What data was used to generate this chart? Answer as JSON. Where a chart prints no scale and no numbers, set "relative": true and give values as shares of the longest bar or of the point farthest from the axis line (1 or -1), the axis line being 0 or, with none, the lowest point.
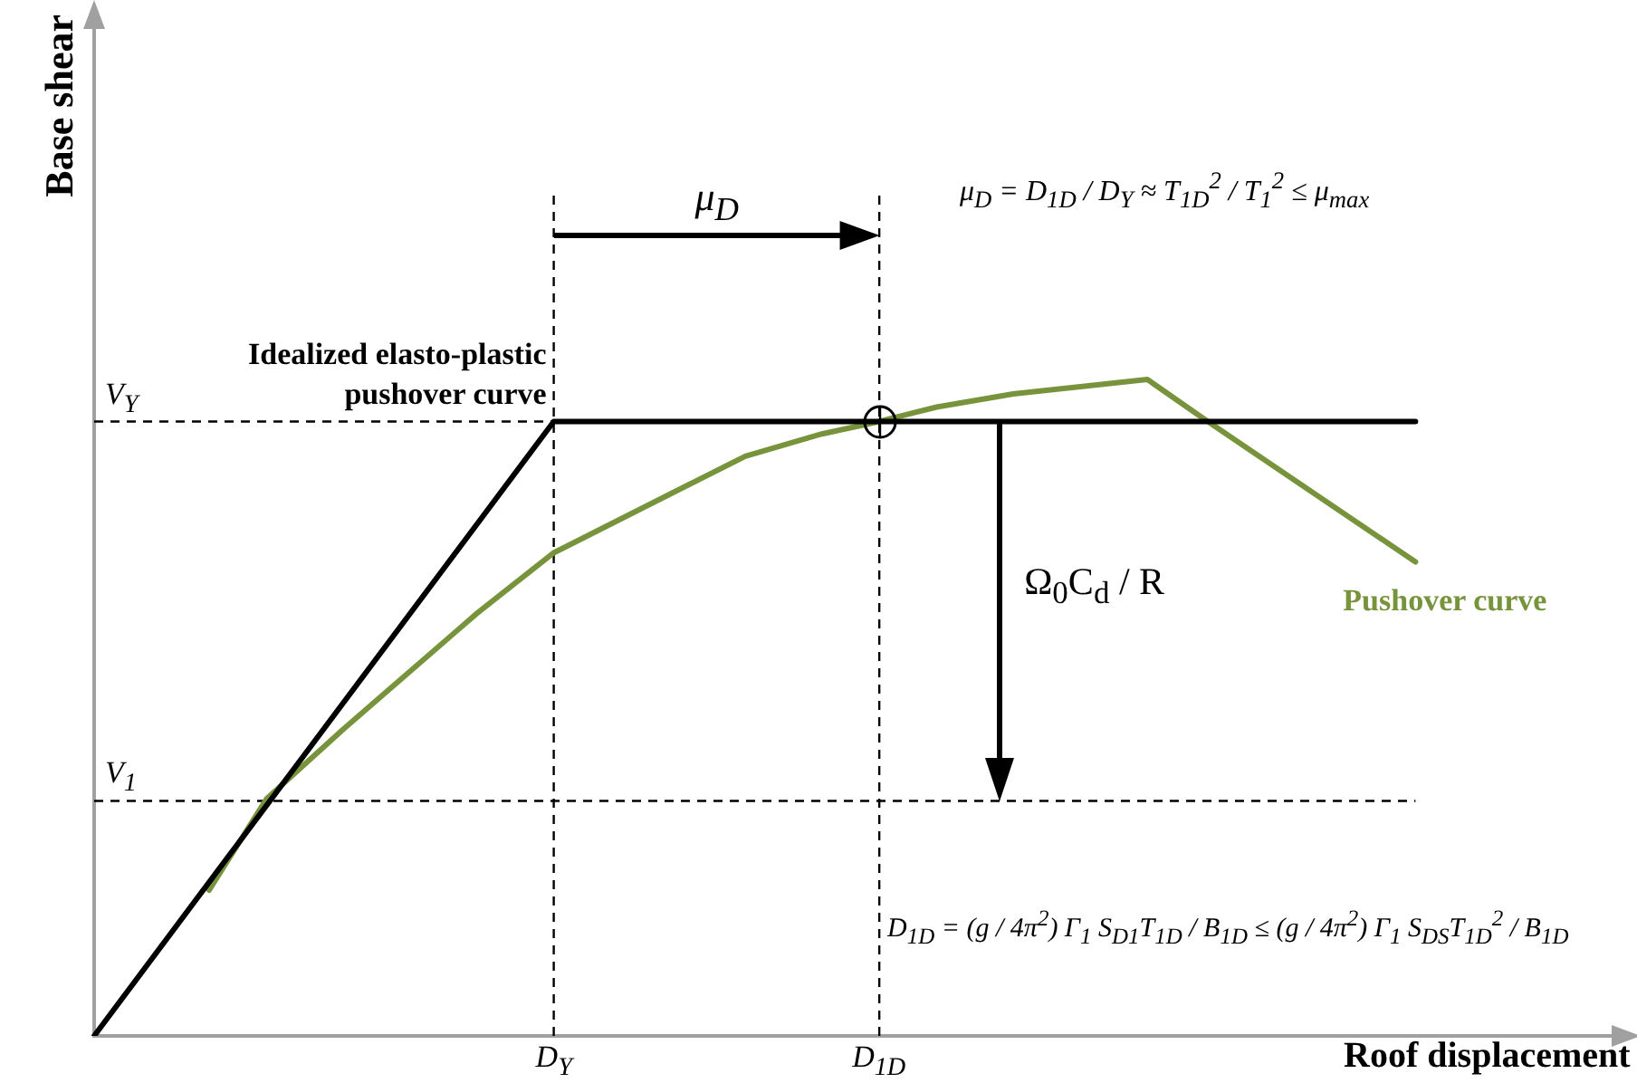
{
  "chart_data": {
    "type": "line",
    "relative": true,
    "xlabel": "Roof displacement",
    "ylabel": "Base shear",
    "legend": false,
    "grid": false,
    "marker": "none",
    "categories": [
      null,
      null,
      null,
      null,
      null,
      null,
      null,
      null,
      null,
      null,
      null,
      null,
      null,
      null,
      null,
      null,
      null,
      null,
      null,
      null,
      null,
      null,
      null,
      null,
      "D$_{Y}$",
      null,
      null,
      null,
      null,
      null,
      null,
      null,
      null,
      null,
      null,
      null,
      null,
      null,
      null,
      null,
      null,
      "D$_{1D}$",
      null,
      null,
      null,
      null,
      null,
      null,
      null,
      null,
      null,
      null,
      null,
      null,
      null,
      null,
      null,
      null,
      null,
      null,
      null,
      null,
      null,
      null,
      null,
      null,
      null,
      null,
      null,
      null,
      null,
      null,
      null,
      null,
      null,
      null,
      null,
      null,
      null,
      null,
      null
    ],
    "series": [
      {
        "name": "Idealized elasto-plastic pushover curve",
        "color": "#000000",
        "values": [
          0,
          null,
          null,
          null,
          null,
          null,
          null,
          null,
          null,
          null,
          null,
          null,
          null,
          null,
          null,
          null,
          null,
          null,
          null,
          null,
          null,
          null,
          null,
          null,
          0.936,
          null,
          null,
          null,
          null,
          null,
          null,
          null,
          null,
          null,
          null,
          null,
          null,
          null,
          null,
          null,
          null,
          null,
          null,
          null,
          null,
          null,
          null,
          null,
          null,
          null,
          null,
          null,
          null,
          null,
          null,
          null,
          null,
          null,
          null,
          null,
          null,
          null,
          null,
          null,
          null,
          null,
          null,
          null,
          null,
          0.936,
          null,
          null,
          null,
          null,
          null,
          null,
          null,
          null,
          null,
          null,
          null
        ]
      },
      {
        "name": "Pushover curve",
        "color": "#77933c",
        "values": [
          null,
          null,
          null,
          null,
          null,
          null,
          0.222,
          null,
          null,
          0.361,
          null,
          null,
          null,
          0.467,
          null,
          null,
          null,
          null,
          null,
          null,
          0.644,
          null,
          null,
          null,
          0.736,
          null,
          null,
          null,
          null,
          null,
          null,
          0.839,
          null,
          null,
          0.883,
          null,
          null,
          null,
          0.917,
          null,
          null,
          0.936,
          null,
          null,
          0.958,
          null,
          null,
          null,
          0.978,
          null,
          null,
          null,
          null,
          null,
          null,
          1,
          null,
          null,
          0.939,
          null,
          null,
          null,
          null,
          null,
          null,
          null,
          null,
          null,
          null,
          0.722,
          null,
          null,
          null,
          null,
          null,
          null,
          null,
          null,
          null,
          null,
          null
        ]
      }
    ],
    "ref_lines": [
      {
        "axis": "y",
        "value": 0.936,
        "label": "V$_{Y}$",
        "color": "#000000",
        "line_style": "dashed"
      },
      {
        "axis": "y",
        "value": 0.358,
        "label": "V$_{1}$",
        "color": "#000000",
        "line_style": "dashed"
      },
      {
        "axis": "x",
        "value": "D$_{Y}$",
        "color": "#000000",
        "line_style": "dashed"
      },
      {
        "axis": "x",
        "value": "D$_{1D}$",
        "color": "#000000",
        "line_style": "dashed"
      }
    ],
    "annotations": [
      "μ$_{D}$",
      "μ$_{D}$ = D$_{1D}$ / D$_{Y}$ ≈ T$_{1D}$$^{2}$ / T$_{1}$$^{2}$ ≤ μ$_{max}$",
      "Ω$_{0}$C$_{d}$ / R",
      "D$_{1D}$ = (g / 4π$^{2}$) Γ$_{1}$ S$_{D1}$T$_{1D}$ / B$_{1D}$ ≤ (g / 4π$^{2}$) Γ$_{1}$ S$_{DS}$T$_{1D}$$^{2}$ / B$_{1D}$"
    ]
  }
}
